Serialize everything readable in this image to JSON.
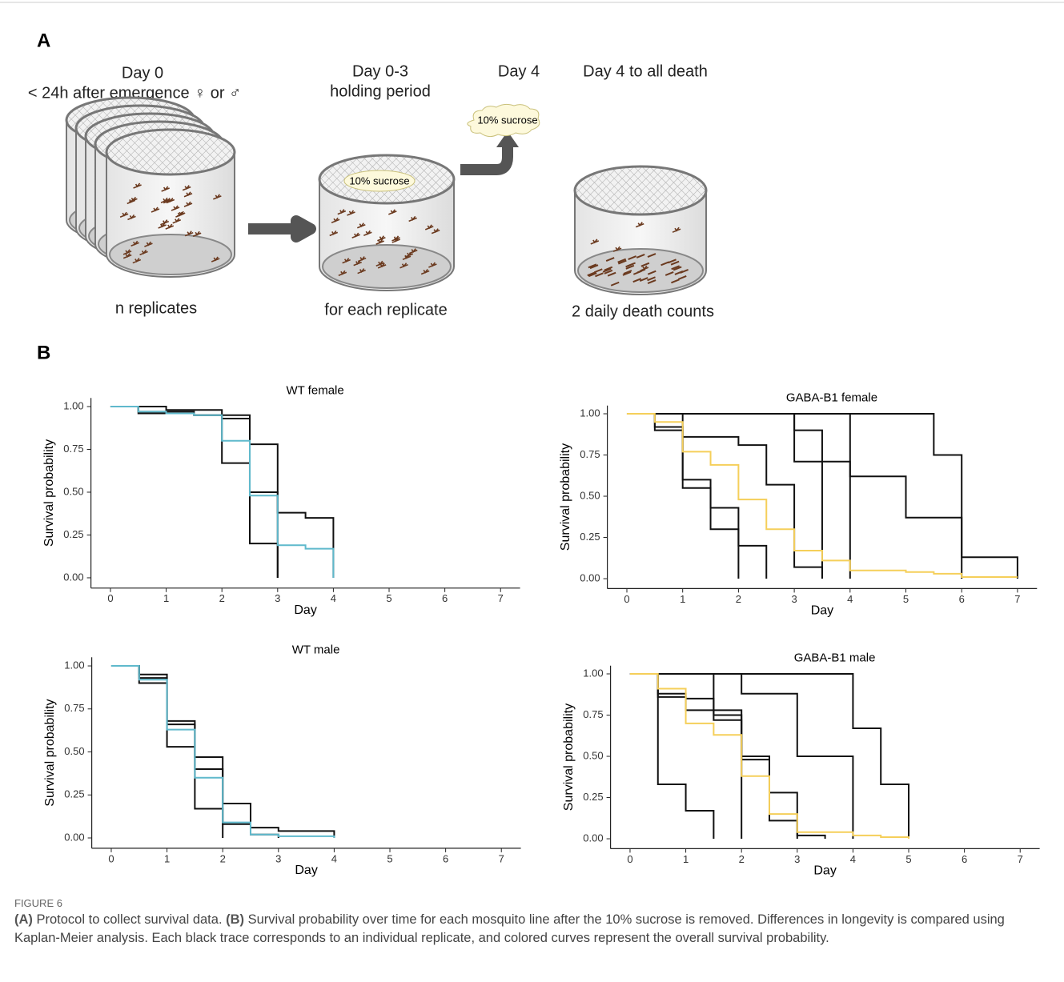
{
  "figure": {
    "panel_a": {
      "label": "A",
      "day0": "Day 0",
      "day0_sub": "< 24h after emergence ♀ or ♂",
      "day03": "Day 0-3",
      "day03_sub": "holding period",
      "day4": "Day 4",
      "day4_all": "Day 4 to all death",
      "sucrose_cloud": "10% sucrose",
      "sucrose_cage": "10% sucrose",
      "n_replicates": "n replicates",
      "each_replicate": "for each replicate",
      "death_counts": "2 daily death counts"
    },
    "panel_b": {
      "label": "B"
    },
    "caption": {
      "figure_label": "FIGURE 6",
      "a_tag": "(A)",
      "a_text": "Protocol to collect survival data.",
      "b_tag": "(B)",
      "b_text": "Survival probability over time for each mosquito line after the 10% sucrose is removed. Differences in longevity is compared using Kaplan-Meier analysis. Each black trace corresponds to an individual replicate, and colored curves represent the overall survival probability."
    }
  },
  "chart_data": [
    {
      "type": "step",
      "title": "WT female",
      "x_label": "Day",
      "y_label": "Survival probability",
      "xlim": [
        -0.35,
        7.35
      ],
      "ylim": [
        -0.06,
        1.05
      ],
      "xticks": [
        0,
        1,
        2,
        3,
        4,
        5,
        6,
        7
      ],
      "yticks": [
        {
          "value": 0,
          "label": "0.00"
        },
        {
          "value": 0.25,
          "label": "0.25"
        },
        {
          "value": 0.5,
          "label": "0.50"
        },
        {
          "value": 0.75,
          "label": "0.75"
        },
        {
          "value": 1,
          "label": "1.00"
        }
      ],
      "series": [
        {
          "color": "#111111",
          "x": [
            0,
            1,
            2,
            2.5,
            3,
            3.5,
            4
          ],
          "values": [
            1,
            0.98,
            0.93,
            0.78,
            0.38,
            0.35,
            0
          ]
        },
        {
          "color": "#111111",
          "x": [
            0,
            0.5,
            1.5,
            2,
            2.5,
            3
          ],
          "values": [
            1,
            0.96,
            0.95,
            0.67,
            0.2,
            0
          ]
        },
        {
          "color": "#111111",
          "x": [
            0,
            0.5,
            1.5,
            2.5,
            3
          ],
          "values": [
            1,
            0.97,
            0.95,
            0.5,
            0
          ]
        },
        {
          "color": "#5fb9cc",
          "x": [
            0,
            0.5,
            1,
            1.5,
            2,
            2.5,
            3,
            3.5,
            4
          ],
          "values": [
            1,
            0.97,
            0.96,
            0.95,
            0.8,
            0.48,
            0.19,
            0.17,
            0
          ]
        }
      ]
    },
    {
      "type": "step",
      "title": "GABA-B1 female",
      "x_label": "Day",
      "y_label": "Survival probability",
      "xlim": [
        -0.35,
        7.35
      ],
      "ylim": [
        -0.06,
        1.05
      ],
      "xticks": [
        0,
        1,
        2,
        3,
        4,
        5,
        6,
        7
      ],
      "yticks": [
        {
          "value": 0,
          "label": "0.00"
        },
        {
          "value": 0.25,
          "label": "0.25"
        },
        {
          "value": 0.5,
          "label": "0.50"
        },
        {
          "value": 0.75,
          "label": "0.75"
        },
        {
          "value": 1,
          "label": "1.00"
        }
      ],
      "series": [
        {
          "color": "#111111",
          "x": [
            0,
            5.5,
            6,
            7
          ],
          "values": [
            1,
            0.75,
            0.13,
            0
          ]
        },
        {
          "color": "#111111",
          "x": [
            0,
            4,
            5,
            6
          ],
          "values": [
            1,
            0.62,
            0.37,
            0
          ]
        },
        {
          "color": "#111111",
          "x": [
            0,
            3,
            4
          ],
          "values": [
            1,
            0.71,
            0
          ]
        },
        {
          "color": "#111111",
          "x": [
            0,
            3,
            3.5
          ],
          "values": [
            1,
            0.9,
            0
          ]
        },
        {
          "color": "#111111",
          "x": [
            0,
            0.5,
            1,
            2,
            2.5,
            3,
            3.5
          ],
          "values": [
            1,
            0.92,
            0.86,
            0.81,
            0.57,
            0.07,
            0
          ]
        },
        {
          "color": "#111111",
          "x": [
            0,
            0.5,
            1,
            1.5,
            2,
            2.5
          ],
          "values": [
            1,
            0.9,
            0.55,
            0.43,
            0.2,
            0
          ]
        },
        {
          "color": "#111111",
          "x": [
            0,
            1,
            1.5,
            2
          ],
          "values": [
            1,
            0.6,
            0.3,
            0
          ]
        },
        {
          "color": "#f5cf5a",
          "x": [
            0,
            0.5,
            1,
            1.5,
            2,
            2.5,
            3,
            3.5,
            4,
            5,
            5.5,
            6,
            7
          ],
          "values": [
            1,
            0.95,
            0.77,
            0.69,
            0.48,
            0.3,
            0.17,
            0.11,
            0.05,
            0.04,
            0.03,
            0.01,
            0.01
          ]
        }
      ]
    },
    {
      "type": "step",
      "title": "WT male",
      "x_label": "Day",
      "y_label": "Survival probability",
      "xlim": [
        -0.35,
        7.35
      ],
      "ylim": [
        -0.06,
        1.05
      ],
      "xticks": [
        0,
        1,
        2,
        3,
        4,
        5,
        6,
        7
      ],
      "yticks": [
        {
          "value": 0,
          "label": "0.00"
        },
        {
          "value": 0.25,
          "label": "0.25"
        },
        {
          "value": 0.5,
          "label": "0.50"
        },
        {
          "value": 0.75,
          "label": "0.75"
        },
        {
          "value": 1,
          "label": "1.00"
        }
      ],
      "series": [
        {
          "color": "#111111",
          "x": [
            0,
            0.5,
            1,
            1.5,
            2,
            2.5,
            3,
            4
          ],
          "values": [
            1,
            0.95,
            0.68,
            0.47,
            0.2,
            0.06,
            0.04,
            0
          ]
        },
        {
          "color": "#111111",
          "x": [
            0,
            0.5,
            1,
            1.5,
            2
          ],
          "values": [
            1,
            0.9,
            0.53,
            0.17,
            0
          ]
        },
        {
          "color": "#111111",
          "x": [
            0,
            0.5,
            1,
            1.5,
            2,
            2.5,
            3
          ],
          "values": [
            1,
            0.93,
            0.66,
            0.4,
            0.08,
            0.02,
            0
          ]
        },
        {
          "color": "#5fb9cc",
          "x": [
            0,
            0.5,
            1,
            1.5,
            2,
            2.5,
            3,
            4
          ],
          "values": [
            1,
            0.92,
            0.63,
            0.35,
            0.09,
            0.02,
            0.01,
            0
          ]
        }
      ]
    },
    {
      "type": "step",
      "title": "GABA-B1 male",
      "x_label": "Day",
      "y_label": "Survival probability",
      "xlim": [
        -0.35,
        7.35
      ],
      "ylim": [
        -0.06,
        1.05
      ],
      "xticks": [
        0,
        1,
        2,
        3,
        4,
        5,
        6,
        7
      ],
      "yticks": [
        {
          "value": 0,
          "label": "0.00"
        },
        {
          "value": 0.25,
          "label": "0.25"
        },
        {
          "value": 0.5,
          "label": "0.50"
        },
        {
          "value": 0.75,
          "label": "0.75"
        },
        {
          "value": 1,
          "label": "1.00"
        }
      ],
      "series": [
        {
          "color": "#111111",
          "x": [
            0,
            4,
            4.5,
            5
          ],
          "values": [
            1,
            0.67,
            0.33,
            0
          ]
        },
        {
          "color": "#111111",
          "x": [
            0,
            2,
            3,
            4
          ],
          "values": [
            1,
            0.88,
            0.5,
            0
          ]
        },
        {
          "color": "#111111",
          "x": [
            0,
            0.5,
            1,
            1.5
          ],
          "values": [
            1,
            0.33,
            0.17,
            0
          ]
        },
        {
          "color": "#111111",
          "x": [
            0,
            0.5,
            1,
            2,
            2.5,
            3
          ],
          "values": [
            1,
            0.88,
            0.78,
            0.5,
            0.28,
            0
          ]
        },
        {
          "color": "#111111",
          "x": [
            0,
            0.5,
            1,
            1.5,
            2,
            2.5,
            3,
            3.5
          ],
          "values": [
            1,
            0.86,
            0.85,
            0.72,
            0.48,
            0.11,
            0.02,
            0
          ]
        },
        {
          "color": "#111111",
          "x": [
            0,
            1.5,
            2
          ],
          "values": [
            1,
            0.75,
            0
          ]
        },
        {
          "color": "#f5cf5a",
          "x": [
            0,
            0.5,
            1,
            1.5,
            2,
            2.5,
            3,
            4,
            4.5,
            5
          ],
          "values": [
            1,
            0.91,
            0.7,
            0.63,
            0.38,
            0.15,
            0.04,
            0.02,
            0.01,
            0
          ]
        }
      ]
    }
  ]
}
